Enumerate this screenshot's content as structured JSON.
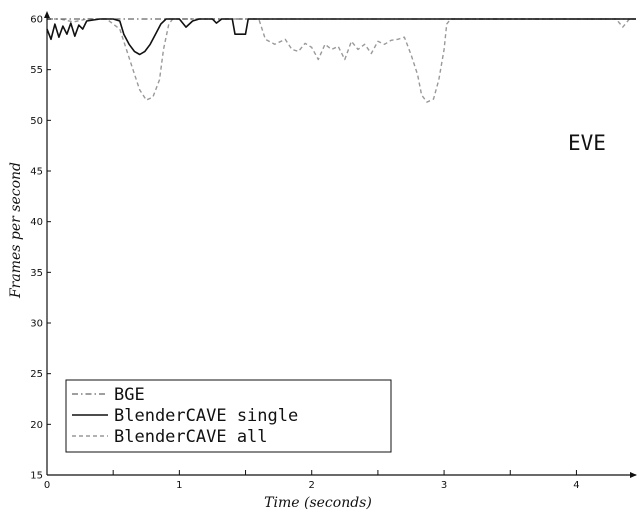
{
  "chart_data": {
    "type": "line",
    "title": "",
    "xlabel": "Time (seconds)",
    "ylabel": "Frames per second",
    "xlim": [
      0,
      4.45
    ],
    "ylim": [
      15,
      60
    ],
    "x_ticks": [
      0,
      1,
      2,
      3,
      4
    ],
    "y_ticks": [
      15,
      20,
      25,
      30,
      35,
      40,
      45,
      50,
      55,
      60
    ],
    "grid": false,
    "legend": "bottom-left",
    "annotation": "EVE",
    "series": [
      {
        "name": "BGE",
        "style": "dash-dot",
        "color": "#666666",
        "points": [
          [
            0,
            60
          ],
          [
            0.5,
            60
          ],
          [
            1,
            60
          ],
          [
            1.5,
            60
          ],
          [
            2,
            60
          ],
          [
            2.5,
            60
          ],
          [
            3,
            60
          ],
          [
            3.5,
            60
          ],
          [
            4,
            60
          ],
          [
            4.45,
            60
          ]
        ]
      },
      {
        "name": "BlenderCAVE single",
        "style": "solid",
        "color": "#111111",
        "points": [
          [
            0,
            59
          ],
          [
            0.03,
            58
          ],
          [
            0.06,
            59.5
          ],
          [
            0.09,
            58.2
          ],
          [
            0.12,
            59.3
          ],
          [
            0.15,
            58.5
          ],
          [
            0.18,
            59.6
          ],
          [
            0.21,
            58.3
          ],
          [
            0.24,
            59.4
          ],
          [
            0.27,
            59
          ],
          [
            0.3,
            59.8
          ],
          [
            0.4,
            60
          ],
          [
            0.5,
            60
          ],
          [
            0.55,
            59.8
          ],
          [
            0.58,
            58.5
          ],
          [
            0.62,
            57.5
          ],
          [
            0.66,
            56.8
          ],
          [
            0.7,
            56.5
          ],
          [
            0.74,
            56.8
          ],
          [
            0.78,
            57.5
          ],
          [
            0.82,
            58.5
          ],
          [
            0.86,
            59.5
          ],
          [
            0.9,
            60
          ],
          [
            1.0,
            60
          ],
          [
            1.05,
            59.2
          ],
          [
            1.1,
            59.8
          ],
          [
            1.15,
            60
          ],
          [
            1.25,
            60
          ],
          [
            1.28,
            59.6
          ],
          [
            1.32,
            60
          ],
          [
            1.4,
            60
          ],
          [
            1.42,
            58.5
          ],
          [
            1.5,
            58.5
          ],
          [
            1.52,
            60
          ],
          [
            1.6,
            60
          ],
          [
            2,
            60
          ],
          [
            2.5,
            60
          ],
          [
            3,
            60
          ],
          [
            3.5,
            60
          ],
          [
            4,
            60
          ],
          [
            4.45,
            60
          ]
        ]
      },
      {
        "name": "BlenderCAVE all",
        "style": "dashed",
        "color": "#999999",
        "points": [
          [
            0,
            60
          ],
          [
            0.1,
            60
          ],
          [
            0.2,
            59.7
          ],
          [
            0.3,
            60
          ],
          [
            0.45,
            60
          ],
          [
            0.55,
            59
          ],
          [
            0.6,
            57
          ],
          [
            0.65,
            55
          ],
          [
            0.7,
            53
          ],
          [
            0.75,
            52
          ],
          [
            0.8,
            52.3
          ],
          [
            0.85,
            54
          ],
          [
            0.88,
            57
          ],
          [
            0.92,
            59.5
          ],
          [
            0.95,
            60
          ],
          [
            1.6,
            60
          ],
          [
            1.65,
            58
          ],
          [
            1.72,
            57.5
          ],
          [
            1.8,
            58
          ],
          [
            1.85,
            57
          ],
          [
            1.9,
            56.8
          ],
          [
            1.95,
            57.6
          ],
          [
            2.0,
            57.2
          ],
          [
            2.05,
            56
          ],
          [
            2.1,
            57.5
          ],
          [
            2.15,
            57
          ],
          [
            2.2,
            57.3
          ],
          [
            2.25,
            56
          ],
          [
            2.3,
            57.8
          ],
          [
            2.35,
            57
          ],
          [
            2.4,
            57.5
          ],
          [
            2.45,
            56.6
          ],
          [
            2.5,
            57.8
          ],
          [
            2.55,
            57.5
          ],
          [
            2.6,
            57.9
          ],
          [
            2.65,
            58
          ],
          [
            2.7,
            58.2
          ],
          [
            2.75,
            56.5
          ],
          [
            2.8,
            54.5
          ],
          [
            2.83,
            52.5
          ],
          [
            2.87,
            51.8
          ],
          [
            2.92,
            52.1
          ],
          [
            2.96,
            54
          ],
          [
            3.0,
            57
          ],
          [
            3.02,
            59.5
          ],
          [
            3.05,
            60
          ],
          [
            3.5,
            60
          ],
          [
            4,
            60
          ],
          [
            4.3,
            60
          ],
          [
            4.35,
            59.2
          ],
          [
            4.4,
            60
          ],
          [
            4.45,
            60
          ]
        ]
      }
    ]
  }
}
